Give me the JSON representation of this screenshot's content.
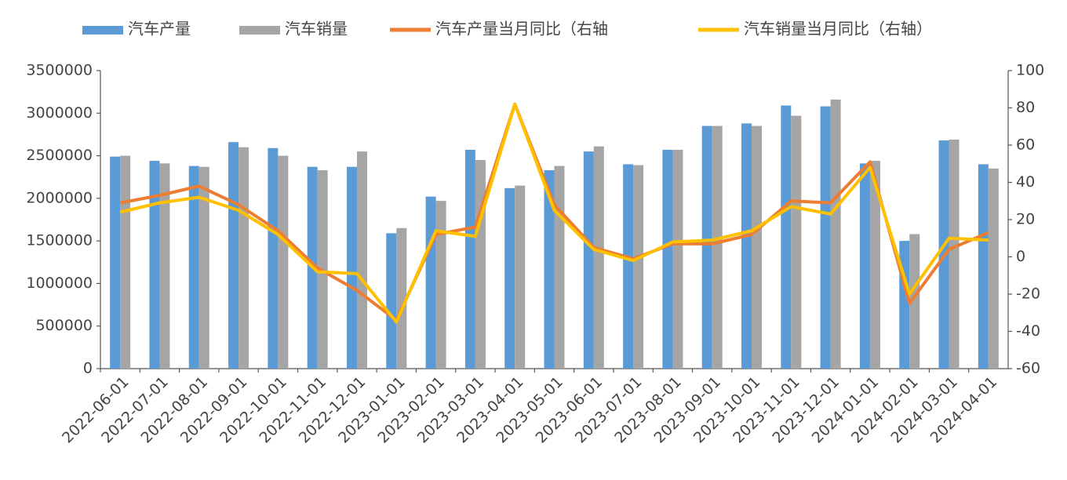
{
  "chart_data": {
    "type": "bar-line",
    "categories": [
      "2022-06-01",
      "2022-07-01",
      "2022-08-01",
      "2022-09-01",
      "2022-10-01",
      "2022-11-01",
      "2022-12-01",
      "2023-01-01",
      "2023-02-01",
      "2023-03-01",
      "2023-04-01",
      "2023-05-01",
      "2023-06-01",
      "2023-07-01",
      "2023-08-01",
      "2023-09-01",
      "2023-10-01",
      "2023-11-01",
      "2023-12-01",
      "2024-01-01",
      "2024-02-01",
      "2024-03-01",
      "2024-04-01"
    ],
    "series": [
      {
        "name": "汽车产量",
        "type": "bar",
        "color": "#5b9bd5",
        "values": [
          2490000,
          2440000,
          2380000,
          2660000,
          2590000,
          2370000,
          2370000,
          1590000,
          2020000,
          2570000,
          2120000,
          2330000,
          2550000,
          2400000,
          2570000,
          2850000,
          2880000,
          3090000,
          3080000,
          2410000,
          1500000,
          2680000,
          2400000
        ]
      },
      {
        "name": "汽车销量",
        "type": "bar",
        "color": "#a5a5a5",
        "values": [
          2500000,
          2410000,
          2370000,
          2600000,
          2500000,
          2330000,
          2550000,
          1650000,
          1970000,
          2450000,
          2150000,
          2380000,
          2610000,
          2390000,
          2570000,
          2850000,
          2850000,
          2970000,
          3160000,
          2440000,
          1580000,
          2690000,
          2350000
        ]
      },
      {
        "name": "汽车产量当月同比（右轴",
        "type": "line",
        "axis": "y2",
        "color": "#ed7d31",
        "values": [
          29,
          33,
          38,
          28,
          14,
          -6,
          -18,
          -34,
          12,
          16,
          82,
          28,
          5,
          -1,
          7,
          7,
          12,
          30,
          29,
          51,
          -25,
          4,
          13
        ]
      },
      {
        "name": "汽车销量当月同比（右轴）",
        "type": "line",
        "axis": "y2",
        "color": "#ffc000",
        "values": [
          24,
          29,
          32,
          25,
          12,
          -8,
          -9,
          -35,
          14,
          11,
          82,
          25,
          4,
          -2,
          8,
          9,
          14,
          27,
          23,
          48,
          -20,
          10,
          9
        ]
      }
    ],
    "ylim": [
      0,
      3500000
    ],
    "yticks": [
      0,
      500000,
      1000000,
      1500000,
      2000000,
      2500000,
      3000000,
      3500000
    ],
    "y2lim": [
      -60,
      100
    ],
    "y2ticks": [
      -60,
      -40,
      -20,
      0,
      20,
      40,
      60,
      80,
      100
    ],
    "grid": false
  }
}
